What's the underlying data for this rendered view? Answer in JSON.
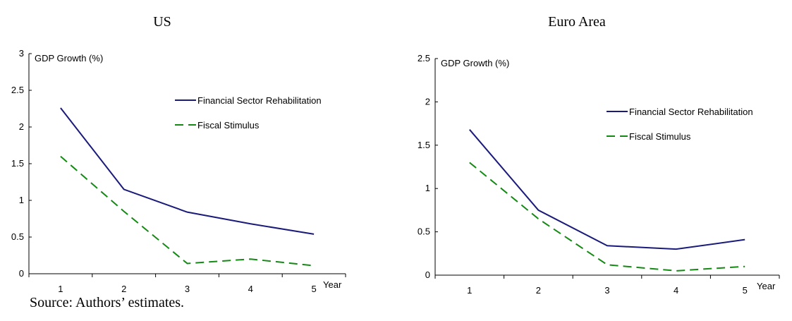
{
  "source_note": "Source: Authors’ estimates.",
  "colors": {
    "rehab": "#1a1a7a",
    "fiscal": "#148a14"
  },
  "chart_data": [
    {
      "type": "line",
      "title": "US",
      "ylabel": "GDP Growth (%)",
      "xlabel": "Year",
      "x": [
        1,
        2,
        3,
        4,
        5
      ],
      "xlim": [
        0.5,
        5.5
      ],
      "ylim": [
        0,
        3
      ],
      "yticks": [
        0,
        0.5,
        1,
        1.5,
        2,
        2.5,
        3
      ],
      "ytick_labels": [
        "0",
        "0.5",
        "1",
        "1.5",
        "2",
        "2.5",
        "3"
      ],
      "grid": false,
      "legend_position": "top-right",
      "series": [
        {
          "name": "Financial Sector Rehabilitation",
          "values": [
            2.26,
            1.15,
            0.84,
            0.68,
            0.54
          ],
          "style": "solid",
          "color": "#1a1a7a"
        },
        {
          "name": "Fiscal Stimulus",
          "values": [
            1.6,
            0.85,
            0.14,
            0.2,
            0.11
          ],
          "style": "dashed",
          "color": "#148a14"
        }
      ]
    },
    {
      "type": "line",
      "title": "Euro Area",
      "ylabel": "GDP Growth (%)",
      "xlabel": "Year",
      "x": [
        1,
        2,
        3,
        4,
        5
      ],
      "xlim": [
        0.5,
        5.5
      ],
      "ylim": [
        0,
        2.5
      ],
      "yticks": [
        0,
        0.5,
        1,
        1.5,
        2,
        2.5
      ],
      "ytick_labels": [
        "0",
        "0.5",
        "1",
        "1.5",
        "2",
        "2.5"
      ],
      "grid": false,
      "legend_position": "top-right",
      "series": [
        {
          "name": "Financial Sector Rehabilitation",
          "values": [
            1.68,
            0.75,
            0.34,
            0.3,
            0.41
          ],
          "style": "solid",
          "color": "#1a1a7a"
        },
        {
          "name": "Fiscal Stimulus",
          "values": [
            1.3,
            0.65,
            0.12,
            0.05,
            0.1
          ],
          "style": "dashed",
          "color": "#148a14"
        }
      ]
    }
  ]
}
